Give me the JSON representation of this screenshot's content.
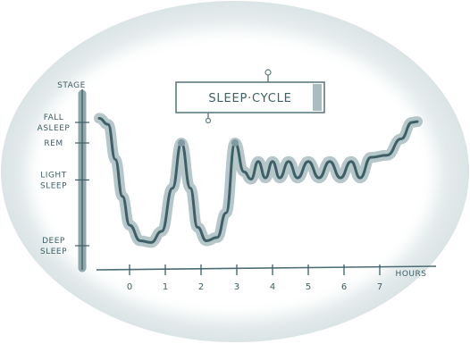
{
  "chart_data": {
    "type": "line",
    "title": "SLEEP·CYCLE",
    "xlabel": "HOURS",
    "ylabel": "STAGE",
    "x_ticks": [
      "0",
      "1",
      "2",
      "3",
      "4",
      "5",
      "6",
      "7"
    ],
    "xlim": [
      -0.9,
      8.1
    ],
    "y_stages": [
      "FALL ASLEEP",
      "REM",
      "LIGHT SLEEP",
      "DEEP SLEEP"
    ],
    "y_scale": "stage level: 4 = fall asleep, 3.5 = REM, 2.6 = light sleep, 1 = deep sleep",
    "ylim": [
      0.3,
      4.8
    ],
    "grid": false,
    "series": [
      {
        "values": [
          [
            -0.85,
            4.1
          ],
          [
            -0.6,
            3.95
          ],
          [
            -0.4,
            3.1
          ],
          [
            -0.2,
            2.2
          ],
          [
            0.0,
            1.5
          ],
          [
            0.3,
            1.12
          ],
          [
            0.6,
            1.08
          ],
          [
            0.9,
            1.35
          ],
          [
            1.2,
            2.4
          ],
          [
            1.45,
            3.5
          ],
          [
            1.7,
            2.4
          ],
          [
            1.9,
            1.45
          ],
          [
            2.15,
            1.12
          ],
          [
            2.45,
            1.2
          ],
          [
            2.7,
            1.8
          ],
          [
            2.95,
            3.5
          ],
          [
            3.2,
            2.8
          ],
          [
            3.4,
            2.62
          ],
          [
            3.6,
            3.05
          ],
          [
            3.8,
            2.65
          ],
          [
            4.0,
            3.05
          ],
          [
            4.2,
            2.65
          ],
          [
            4.45,
            3.05
          ],
          [
            4.7,
            2.65
          ],
          [
            5.0,
            3.05
          ],
          [
            5.3,
            2.65
          ],
          [
            5.6,
            3.05
          ],
          [
            5.9,
            2.65
          ],
          [
            6.2,
            3.05
          ],
          [
            6.45,
            2.65
          ],
          [
            6.75,
            3.15
          ],
          [
            7.2,
            3.2
          ],
          [
            7.6,
            3.6
          ],
          [
            7.9,
            4.0
          ],
          [
            8.05,
            4.02
          ]
        ]
      }
    ],
    "markers": [
      {
        "label": "",
        "x": 1.45,
        "y": 3.5
      },
      {
        "label": "",
        "x": 2.95,
        "y": 3.5
      }
    ]
  }
}
